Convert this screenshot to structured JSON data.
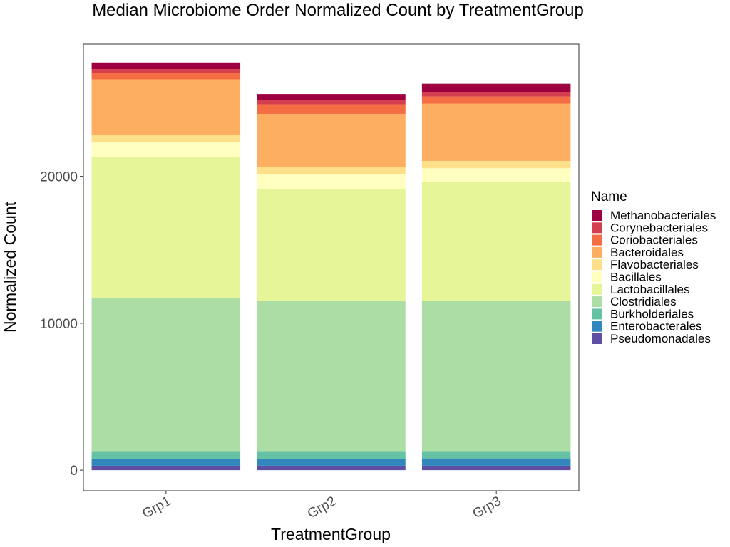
{
  "chart_data": {
    "type": "bar",
    "stacked": true,
    "title": "Median Microbiome Order Normalized Count by TreatmentGroup",
    "xlabel": "TreatmentGroup",
    "ylabel": "Normalized Count",
    "ylim": [
      -1400,
      29000
    ],
    "yticks": [
      0,
      10000,
      20000
    ],
    "categories": [
      "Grp1",
      "Grp2",
      "Grp3"
    ],
    "legend": {
      "title": "Name",
      "position": "right"
    },
    "grid": false,
    "series": [
      {
        "name": "Methanobacteriales",
        "color": "#9E0142",
        "values": [
          450,
          430,
          550
        ]
      },
      {
        "name": "Corynebacteriales",
        "color": "#D53E4F",
        "values": [
          250,
          270,
          320
        ]
      },
      {
        "name": "Coriobacteriales",
        "color": "#F46D43",
        "values": [
          450,
          650,
          480
        ]
      },
      {
        "name": "Bacteroidales",
        "color": "#FDAE61",
        "values": [
          3800,
          3600,
          3900
        ]
      },
      {
        "name": "Flavobacteriales",
        "color": "#FEE08B",
        "values": [
          500,
          500,
          500
        ]
      },
      {
        "name": "Bacillales",
        "color": "#FFFFBF",
        "values": [
          1000,
          1000,
          950
        ]
      },
      {
        "name": "Lactobacillales",
        "color": "#E6F598",
        "values": [
          9600,
          7600,
          8100
        ]
      },
      {
        "name": "Clostridiales",
        "color": "#ABDDA4",
        "values": [
          10400,
          10250,
          10200
        ]
      },
      {
        "name": "Burkholderiales",
        "color": "#66C2A5",
        "values": [
          550,
          550,
          500
        ]
      },
      {
        "name": "Enterobacterales",
        "color": "#3288BD",
        "values": [
          450,
          450,
          500
        ]
      },
      {
        "name": "Pseudomonadales",
        "color": "#5E4FA2",
        "values": [
          300,
          300,
          300
        ]
      }
    ]
  }
}
